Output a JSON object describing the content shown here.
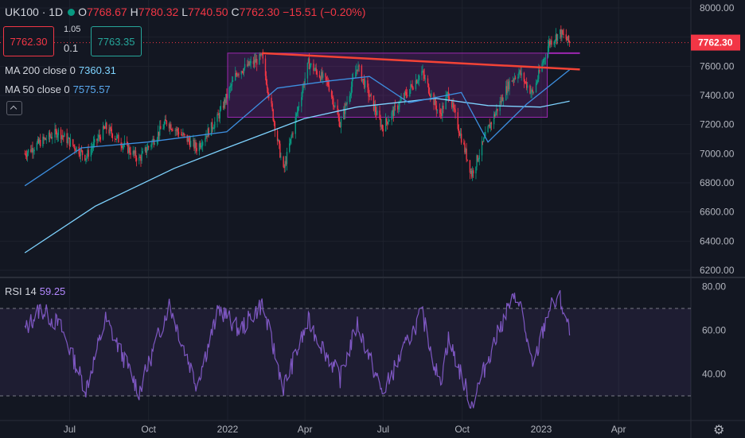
{
  "header": {
    "symbol": "UK100",
    "separator": "·",
    "interval": "1D",
    "o_label": "O",
    "o_value": "7768.67",
    "h_label": "H",
    "h_value": "7780.32",
    "l_label": "L",
    "l_value": "7740.50",
    "c_label": "C",
    "c_value": "7762.30",
    "change": "−15.51 (−0.20%)"
  },
  "trade": {
    "sell": "7762.30",
    "spread_top": "1.05",
    "spread_bottom": "0.1",
    "buy": "7763.35"
  },
  "indicators": {
    "ma200_label": "MA 200 close 0",
    "ma200_value": "7360.31",
    "ma50_label": "MA 50 close 0",
    "ma50_value": "7575.57",
    "rsi_label": "RSI 14",
    "rsi_value": "59.25"
  },
  "colors": {
    "background": "#131722",
    "up": "#089981",
    "down": "#f23645",
    "ma200": "#7ed3ff",
    "ma50": "#3d8fe0",
    "rsi": "#7e57c2",
    "range_box": "#9c27b0",
    "trendline": "#f44336"
  },
  "icons": {
    "collapse": "chevron-up-icon",
    "settings": "gear-icon"
  },
  "chart_data": [
    {
      "type": "candlestick",
      "title": "UK100 1D",
      "y_range": [
        6200,
        8000
      ],
      "y_ticks": [
        "8000.00",
        "7800.00",
        "7600.00",
        "7400.00",
        "7200.00",
        "7000.00",
        "6800.00",
        "6600.00",
        "6400.00",
        "6200.00"
      ],
      "x_ticks": [
        "Jul",
        "Oct",
        "2022",
        "Apr",
        "Jul",
        "Oct",
        "2023",
        "Apr"
      ],
      "x_range": [
        "2021-05-10",
        "2023-06-01"
      ],
      "last_price": "7762.30",
      "price_anchors": [
        [
          "2021-05-10",
          7000
        ],
        [
          "2021-05-28",
          7080
        ],
        [
          "2021-06-18",
          7150
        ],
        [
          "2021-07-20",
          6980
        ],
        [
          "2021-08-12",
          7180
        ],
        [
          "2021-09-20",
          6960
        ],
        [
          "2021-10-22",
          7220
        ],
        [
          "2021-11-26",
          7040
        ],
        [
          "2021-12-20",
          7240
        ],
        [
          "2022-01-12",
          7560
        ],
        [
          "2022-02-10",
          7660
        ],
        [
          "2022-03-07",
          6880
        ],
        [
          "2022-04-05",
          7620
        ],
        [
          "2022-04-28",
          7480
        ],
        [
          "2022-05-12",
          7200
        ],
        [
          "2022-06-01",
          7600
        ],
        [
          "2022-06-30",
          7180
        ],
        [
          "2022-08-15",
          7560
        ],
        [
          "2022-09-05",
          7260
        ],
        [
          "2022-09-15",
          7420
        ],
        [
          "2022-10-12",
          6860
        ],
        [
          "2022-11-01",
          7180
        ],
        [
          "2022-11-25",
          7490
        ],
        [
          "2022-12-06",
          7560
        ],
        [
          "2022-12-22",
          7410
        ],
        [
          "2023-01-10",
          7760
        ],
        [
          "2023-01-23",
          7830
        ],
        [
          "2023-02-03",
          7762
        ]
      ],
      "ma50": [
        [
          "2021-05-10",
          6780
        ],
        [
          "2021-07-15",
          7040
        ],
        [
          "2021-09-30",
          7080
        ],
        [
          "2021-12-31",
          7150
        ],
        [
          "2022-02-28",
          7450
        ],
        [
          "2022-04-30",
          7500
        ],
        [
          "2022-06-15",
          7530
        ],
        [
          "2022-07-31",
          7350
        ],
        [
          "2022-09-30",
          7420
        ],
        [
          "2022-10-31",
          7080
        ],
        [
          "2022-12-15",
          7340
        ],
        [
          "2023-02-03",
          7575.57
        ]
      ],
      "ma200": [
        [
          "2021-05-10",
          6320
        ],
        [
          "2021-07-31",
          6640
        ],
        [
          "2021-10-31",
          6900
        ],
        [
          "2021-12-31",
          7040
        ],
        [
          "2022-03-31",
          7240
        ],
        [
          "2022-05-31",
          7320
        ],
        [
          "2022-08-31",
          7380
        ],
        [
          "2022-10-31",
          7330
        ],
        [
          "2022-12-31",
          7320
        ],
        [
          "2023-02-03",
          7360.31
        ]
      ],
      "range_box": {
        "x": [
          "2022-01-01",
          "2023-01-08"
        ],
        "y": [
          7250,
          7690
        ]
      },
      "box_top_extension": {
        "x": [
          "2023-01-08",
          "2023-02-15"
        ],
        "y": 7690
      },
      "trendline": {
        "x": [
          "2022-02-10",
          "2023-02-15"
        ],
        "y": [
          7690,
          7578
        ]
      }
    },
    {
      "type": "line",
      "title": "RSI 14",
      "y_range": [
        22,
        82
      ],
      "y_ticks": [
        "80.00",
        "60.00",
        "40.00"
      ],
      "bands": [
        30,
        70
      ],
      "last_value": "59.25",
      "rsi_anchors": [
        [
          "2021-05-10",
          60
        ],
        [
          "2021-05-28",
          70
        ],
        [
          "2021-06-20",
          62
        ],
        [
          "2021-07-20",
          33
        ],
        [
          "2021-08-12",
          65
        ],
        [
          "2021-09-20",
          32
        ],
        [
          "2021-10-25",
          72
        ],
        [
          "2021-11-26",
          35
        ],
        [
          "2021-12-22",
          70
        ],
        [
          "2022-01-15",
          60
        ],
        [
          "2022-02-10",
          72
        ],
        [
          "2022-03-07",
          34
        ],
        [
          "2022-04-05",
          64
        ],
        [
          "2022-05-12",
          38
        ],
        [
          "2022-06-01",
          63
        ],
        [
          "2022-06-30",
          31
        ],
        [
          "2022-08-15",
          68
        ],
        [
          "2022-09-05",
          35
        ],
        [
          "2022-09-15",
          56
        ],
        [
          "2022-10-12",
          26
        ],
        [
          "2022-11-01",
          48
        ],
        [
          "2022-11-25",
          72
        ],
        [
          "2022-12-06",
          75
        ],
        [
          "2022-12-22",
          42
        ],
        [
          "2023-01-10",
          70
        ],
        [
          "2023-01-23",
          74
        ],
        [
          "2023-02-03",
          59.25
        ]
      ]
    }
  ]
}
